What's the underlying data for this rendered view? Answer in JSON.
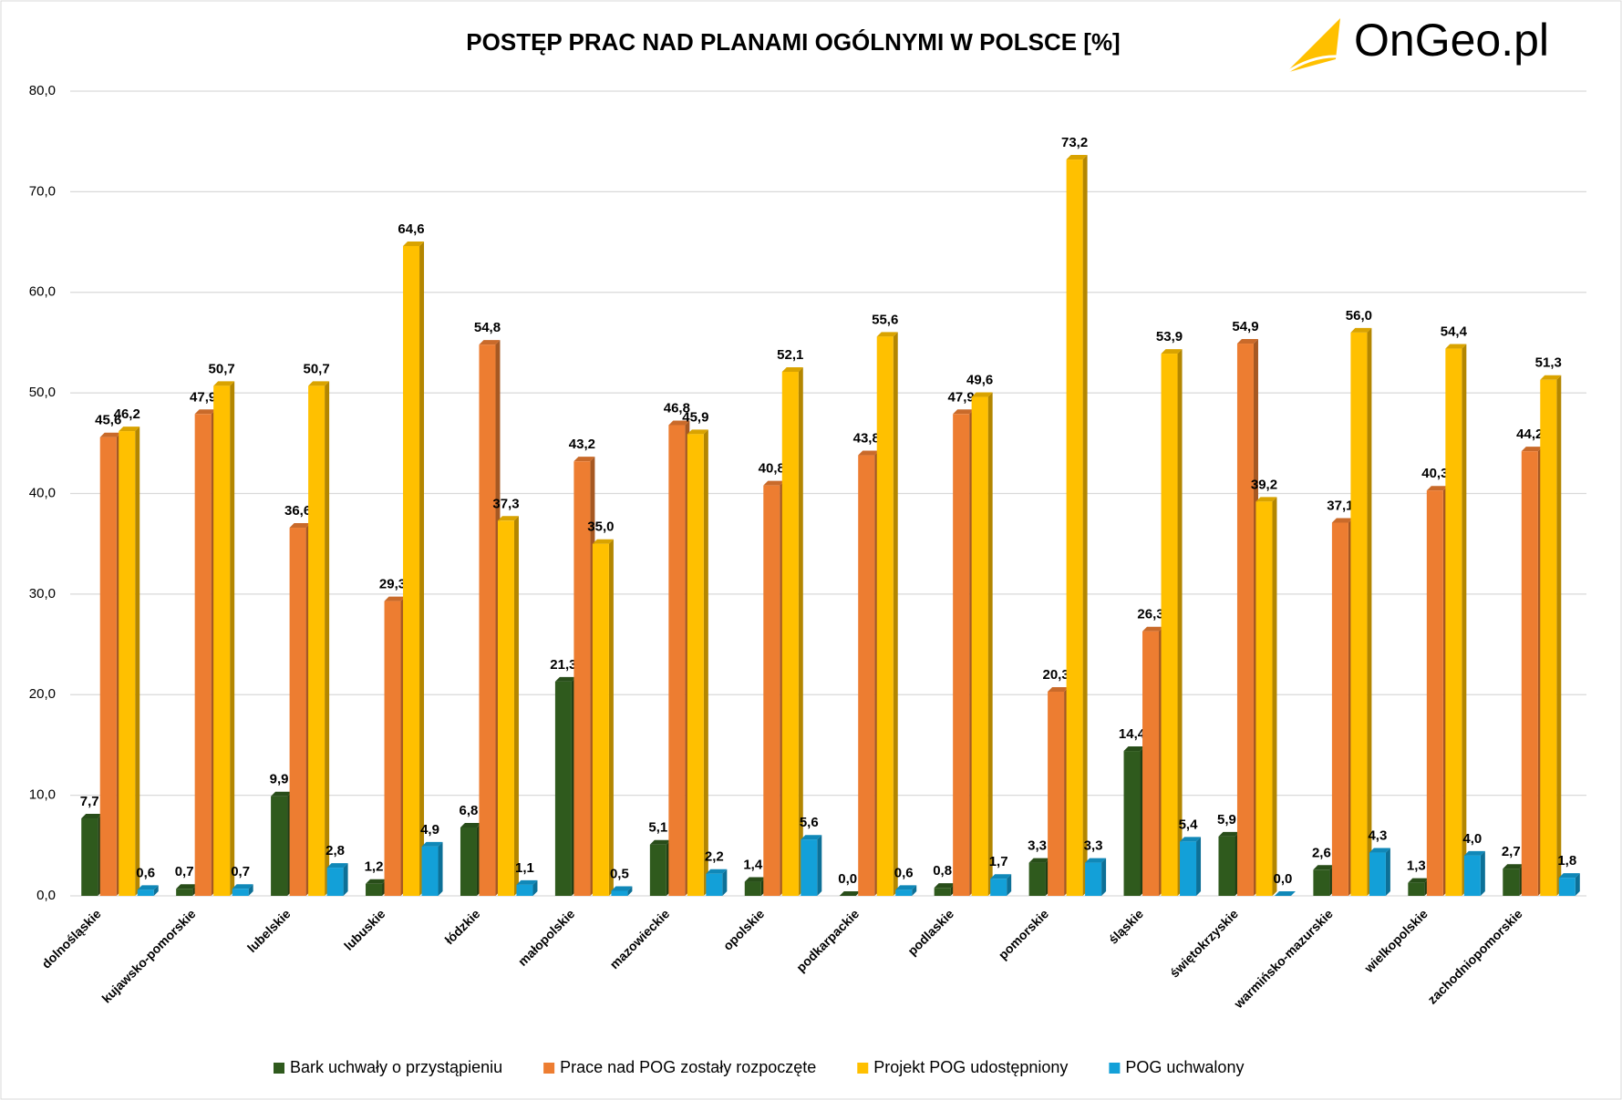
{
  "logo": "OnGeo.pl",
  "chart_data": {
    "type": "bar",
    "title": "POSTĘP PRAC NAD PLANAMI OGÓLNYMI W POLSCE [%]",
    "categories": [
      "dolnośląskie",
      "kujawsko-pomorskie",
      "lubelskie",
      "lubuskie",
      "łódzkie",
      "małopolskie",
      "mazowieckie",
      "opolskie",
      "podkarpackie",
      "podlaskie",
      "pomorskie",
      "śląskie",
      "świętokrzyskie",
      "warmińsko-mazurskie",
      "wielkopolskie",
      "zachodniopomorskie"
    ],
    "series": [
      {
        "name": "Bark uchwały o przystąpieniu",
        "color": "#2f5a1d",
        "values": [
          7.7,
          0.7,
          9.9,
          1.2,
          6.8,
          21.3,
          5.1,
          1.4,
          0.0,
          0.8,
          3.3,
          14.4,
          5.9,
          2.6,
          1.3,
          2.7
        ],
        "value_labels": [
          "7,7",
          "0,7",
          "9,9",
          "1,2",
          "6,8",
          "21,3",
          "5,1",
          "1,4",
          "0,0",
          "0,8",
          "3,3",
          "14,4",
          "5,9",
          "2,6",
          "1,3",
          "2,7"
        ]
      },
      {
        "name": "Prace nad POG zostały rozpoczęte",
        "color": "#ed7d31",
        "values": [
          45.6,
          47.9,
          36.6,
          29.3,
          54.8,
          43.2,
          46.8,
          40.8,
          43.8,
          47.9,
          20.3,
          26.3,
          54.9,
          37.1,
          40.3,
          44.2
        ],
        "value_labels": [
          "45,6",
          "47,9",
          "36,6",
          "29,3",
          "54,8",
          "43,2",
          "46,8",
          "40,8",
          "43,8",
          "47,9",
          "20,3",
          "26,3",
          "54,9",
          "37,1",
          "40,3",
          "44,2"
        ]
      },
      {
        "name": "Projekt POG udostępniony",
        "color": "#ffc000",
        "values": [
          46.2,
          50.7,
          50.7,
          64.6,
          37.3,
          35.0,
          45.9,
          52.1,
          55.6,
          49.6,
          73.2,
          53.9,
          39.2,
          56.0,
          54.4,
          51.3
        ],
        "value_labels": [
          "46,2",
          "50,7",
          "50,7",
          "64,6",
          "37,3",
          "35,0",
          "45,9",
          "52,1",
          "55,6",
          "49,6",
          "73,2",
          "53,9",
          "39,2",
          "56,0",
          "54,4",
          "51,3"
        ]
      },
      {
        "name": "POG uchwalony",
        "color": "#13a0d8",
        "values": [
          0.6,
          0.7,
          2.8,
          4.9,
          1.1,
          0.5,
          2.2,
          5.6,
          0.6,
          1.7,
          3.3,
          5.4,
          0.0,
          4.3,
          4.0,
          1.8
        ],
        "value_labels": [
          "0,6",
          "0,7",
          "2,8",
          "4,9",
          "1,1",
          "0,5",
          "2,2",
          "5,6",
          "0,6",
          "1,7",
          "3,3",
          "5,4",
          "0,0",
          "4,3",
          "4,0",
          "1,8"
        ]
      }
    ],
    "ylim": [
      0,
      80
    ],
    "yticks": [
      {
        "value": 0,
        "label": "0,0"
      },
      {
        "value": 10,
        "label": "10,0"
      },
      {
        "value": 20,
        "label": "20,0"
      },
      {
        "value": 30,
        "label": "30,0"
      },
      {
        "value": 40,
        "label": "40,0"
      },
      {
        "value": 50,
        "label": "50,0"
      },
      {
        "value": 60,
        "label": "60,0"
      },
      {
        "value": 70,
        "label": "70,0"
      },
      {
        "value": 80,
        "label": "80,0"
      }
    ],
    "grid": true,
    "legend": "bottom"
  }
}
